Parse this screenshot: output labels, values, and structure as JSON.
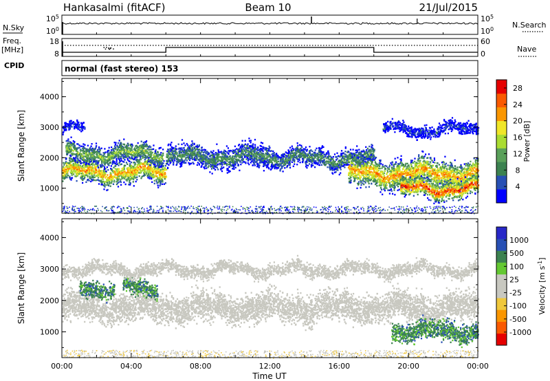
{
  "header": {
    "station": "Hankasalmi (fitACF)",
    "beam": "Beam 10",
    "date": "21/Jul/2015"
  },
  "left_labels": {
    "nsky": "N.Sky",
    "freq": "Freq.",
    "freq_unit": "[MHz]",
    "cpid": "CPID"
  },
  "right_labels": {
    "nsearch": "N.Search",
    "nave": "Nave"
  },
  "small_axes": {
    "nsky_ticks": [
      "10^5",
      "10^0"
    ],
    "freq_ticks": [
      "18",
      "8"
    ],
    "nsearch_ticks": [
      "10^5",
      "10^0"
    ],
    "nave_ticks": [
      "60",
      "0"
    ]
  },
  "cpid_text": "normal (fast stereo) 153",
  "colors": {
    "power_scale": [
      "#0000ff",
      "#2850b4",
      "#3c8250",
      "#5aa05a",
      "#aadc32",
      "#f0e628",
      "#fa9600",
      "#fa5a00",
      "#e60000"
    ],
    "velocity_scale": [
      "#e60000",
      "#fa5a00",
      "#fa9600",
      "#f0c83c",
      "#c8c8c0",
      "#c8c8c0",
      "#64c832",
      "#3c8250",
      "#2850b4",
      "#2828c8"
    ],
    "ground_scatter": "#c8c8c0"
  },
  "chart_data": [
    {
      "type": "heatmap",
      "name": "power",
      "xlabel": "",
      "ylabel": "Slant Range [km]",
      "ylim": [
        180,
        4600
      ],
      "y_ticks": [
        "1000",
        "2000",
        "3000",
        "4000"
      ],
      "colorbar": {
        "label": "Power [dB]",
        "ticks": [
          "4",
          "8",
          "12",
          "16",
          "20",
          "24",
          "28"
        ],
        "range": [
          0,
          30
        ]
      },
      "bands": [
        {
          "t0": 0.0,
          "t1": 6.0,
          "center_km": 1550,
          "width_km": 350,
          "peak_db": 26
        },
        {
          "t0": 0.2,
          "t1": 5.8,
          "center_km": 2150,
          "width_km": 300,
          "peak_db": 18
        },
        {
          "t0": 6.0,
          "t1": 12.0,
          "center_km": 2050,
          "width_km": 350,
          "peak_db": 14
        },
        {
          "t0": 12.0,
          "t1": 18.0,
          "center_km": 2000,
          "width_km": 300,
          "peak_db": 14
        },
        {
          "t0": 16.5,
          "t1": 24.0,
          "center_km": 1500,
          "width_km": 450,
          "peak_db": 26
        },
        {
          "t0": 19.5,
          "t1": 24.0,
          "center_km": 1000,
          "width_km": 300,
          "peak_db": 30
        },
        {
          "t0": 0.0,
          "t1": 1.3,
          "center_km": 3000,
          "width_km": 150,
          "peak_db": 8
        },
        {
          "t0": 18.5,
          "t1": 24.0,
          "center_km": 2950,
          "width_km": 200,
          "peak_db": 8
        }
      ]
    },
    {
      "type": "heatmap",
      "name": "velocity",
      "xlabel": "Time UT",
      "ylabel": "Slant Range [km]",
      "ylim": [
        180,
        4600
      ],
      "y_ticks": [
        "1000",
        "2000",
        "3000",
        "4000"
      ],
      "x_ticks": [
        "00:00",
        "04:00",
        "08:00",
        "12:00",
        "16:00",
        "20:00",
        "00:00"
      ],
      "xlim": [
        0,
        24
      ],
      "colorbar": {
        "label": "Velocity [m s^-1]",
        "ticks": [
          "1000",
          "500",
          "100",
          "25",
          "-25",
          "-100",
          "-500",
          "-1000"
        ]
      },
      "bands": [
        {
          "t0": 0.0,
          "t1": 24.0,
          "center_km": 1800,
          "width_km": 450,
          "kind": "ground"
        },
        {
          "t0": 1.0,
          "t1": 3.0,
          "center_km": 2400,
          "width_km": 250,
          "kind": "positive"
        },
        {
          "t0": 3.5,
          "t1": 5.5,
          "center_km": 2450,
          "width_km": 250,
          "kind": "positive"
        },
        {
          "t0": 19.0,
          "t1": 24.0,
          "center_km": 1050,
          "width_km": 300,
          "kind": "positive"
        },
        {
          "t0": 0.0,
          "t1": 24.0,
          "center_km": 3000,
          "width_km": 200,
          "kind": "ground"
        }
      ]
    }
  ]
}
